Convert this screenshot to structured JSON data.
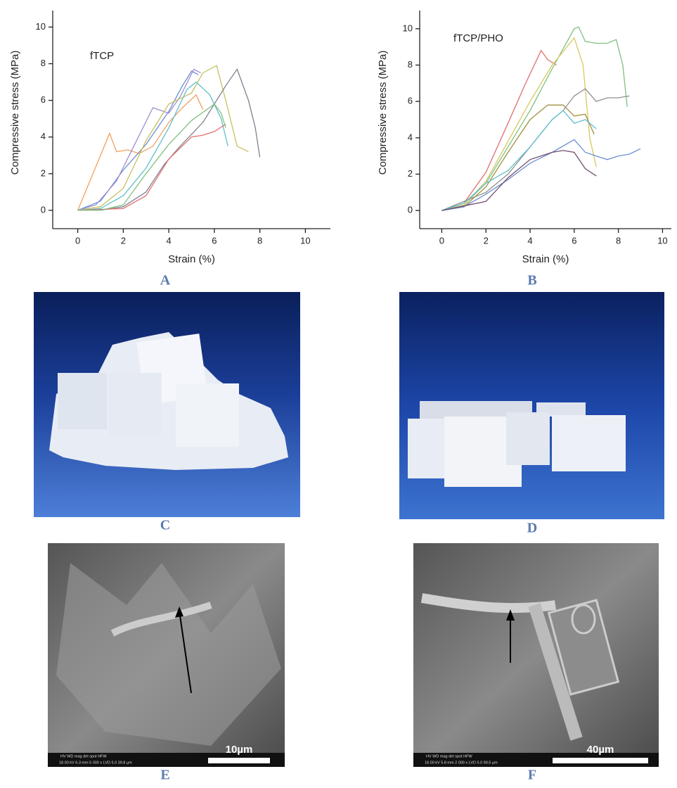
{
  "chart_data": [
    {
      "type": "line",
      "annotation": "fTCP",
      "xlabel": "Strain (%)",
      "ylabel": "Compressive stress (MPa)",
      "xlim": [
        -1.1,
        11.1
      ],
      "ylim": [
        -1,
        10.9
      ],
      "xticks": [
        0,
        2,
        4,
        6,
        8,
        10
      ],
      "yticks": [
        0,
        2,
        4,
        6,
        8,
        10
      ],
      "series": [
        {
          "color": "#f0a060",
          "x": [
            0,
            0.5,
            1,
            1.4,
            1.7,
            2.2,
            2.7,
            3.3,
            4,
            4.6,
            5.2,
            5.5
          ],
          "values": [
            0,
            1.5,
            3,
            4.2,
            3.2,
            3.3,
            3.1,
            3.5,
            4.8,
            5.6,
            6.3,
            5.5
          ]
        },
        {
          "color": "#6a8fd0",
          "x": [
            0,
            1,
            2,
            3,
            4,
            4.6,
            5,
            5.3
          ],
          "values": [
            0,
            0.5,
            2.2,
            3.6,
            5.4,
            6.8,
            7.6,
            7.4
          ]
        },
        {
          "color": "#a090d0",
          "x": [
            0,
            0.8,
            1.7,
            2.5,
            3.3,
            4,
            4.5,
            5.1,
            5.4
          ],
          "values": [
            0,
            0.3,
            1.6,
            3.6,
            5.6,
            5.3,
            6.2,
            7.7,
            7.5
          ]
        },
        {
          "color": "#c8c060",
          "x": [
            0,
            1,
            2,
            3,
            4,
            5,
            5.5,
            6.1,
            6.5,
            7,
            7.5
          ],
          "values": [
            0,
            0.2,
            1.2,
            3.8,
            5.8,
            6.4,
            7.5,
            7.9,
            6,
            3.5,
            3.2
          ]
        },
        {
          "color": "#60c0c8",
          "x": [
            0,
            1,
            2,
            3,
            4,
            4.8,
            5.2,
            5.8,
            6.3,
            6.6
          ],
          "values": [
            0,
            0.1,
            0.8,
            2.3,
            4.5,
            6.6,
            7,
            6.3,
            5,
            3.5
          ]
        },
        {
          "color": "#808090",
          "x": [
            0,
            1,
            2,
            3,
            3.8,
            4.5,
            5.5,
            6.5,
            7,
            7.5,
            7.8,
            8
          ],
          "values": [
            0,
            0,
            0.2,
            1,
            2.5,
            3.5,
            4.8,
            6.8,
            7.7,
            6,
            4.5,
            2.9
          ]
        },
        {
          "color": "#e07070",
          "x": [
            0,
            2,
            3,
            4,
            5,
            5.5,
            6,
            6.5
          ],
          "values": [
            0,
            0.1,
            0.8,
            2.8,
            4,
            4.1,
            4.3,
            4.7
          ]
        },
        {
          "color": "#80c080",
          "x": [
            0,
            1,
            2,
            3,
            4,
            5,
            6,
            6.3,
            6.5
          ],
          "values": [
            0,
            0,
            0.3,
            2,
            3.6,
            4.9,
            5.8,
            5.3,
            4.5
          ]
        }
      ]
    },
    {
      "type": "line",
      "annotation": "fTCP/PHO",
      "xlabel": "Strain (%)",
      "ylabel": "Compressive stress (MPa)",
      "xlim": [
        -1,
        10.4
      ],
      "ylim": [
        -1,
        11
      ],
      "xticks": [
        0,
        2,
        4,
        6,
        8,
        10
      ],
      "yticks": [
        0,
        2,
        4,
        6,
        8,
        10
      ],
      "series": [
        {
          "color": "#e07070",
          "x": [
            0,
            1,
            2,
            3,
            3.8,
            4.5,
            4.8,
            5.2
          ],
          "values": [
            0,
            0.4,
            2.1,
            4.8,
            7,
            8.8,
            8.3,
            8
          ]
        },
        {
          "color": "#80c080",
          "x": [
            0,
            1,
            2,
            3,
            4,
            5,
            6,
            6.2,
            6.5,
            7,
            7.5,
            7.9,
            8.2,
            8.4
          ],
          "values": [
            0,
            0.3,
            1.5,
            3.5,
            5.5,
            7.8,
            10,
            10.1,
            9.3,
            9.2,
            9.2,
            9.4,
            8,
            5.7
          ]
        },
        {
          "color": "#d8c860",
          "x": [
            0,
            1,
            2,
            3,
            4,
            5,
            6,
            6.4,
            6.7,
            7
          ],
          "values": [
            0,
            0.3,
            1.6,
            3.8,
            6,
            8,
            9.5,
            8,
            4,
            2.4
          ]
        },
        {
          "color": "#909090",
          "x": [
            0,
            2,
            3,
            4,
            5,
            5.5,
            6,
            6.5,
            7,
            7.5,
            8,
            8.5
          ],
          "values": [
            0,
            1,
            2,
            3.5,
            5,
            5.5,
            6.3,
            6.7,
            6,
            6.2,
            6.2,
            6.3
          ]
        },
        {
          "color": "#a09040",
          "x": [
            0,
            1,
            2,
            3,
            4,
            4.8,
            5.5,
            6,
            6.5,
            6.9
          ],
          "values": [
            0,
            0.2,
            1.3,
            3.2,
            5,
            5.8,
            5.8,
            5.2,
            5.3,
            4.2
          ]
        },
        {
          "color": "#60c0d0",
          "x": [
            0,
            1,
            2,
            3,
            4,
            5,
            5.5,
            6,
            6.5,
            7
          ],
          "values": [
            0,
            0.4,
            1.5,
            2.2,
            3.5,
            5,
            5.5,
            4.8,
            5,
            4.5
          ]
        },
        {
          "color": "#6a8fd0",
          "x": [
            0,
            1,
            2,
            3,
            4,
            5,
            6,
            6.5,
            7,
            7.5,
            8,
            8.5,
            9
          ],
          "values": [
            0,
            0.2,
            0.9,
            1.7,
            2.6,
            3.2,
            3.9,
            3.2,
            3,
            2.8,
            3,
            3.1,
            3.4
          ]
        },
        {
          "color": "#705070",
          "x": [
            0,
            2,
            3,
            4,
            5,
            5.5,
            6,
            6.5,
            7
          ],
          "values": [
            0,
            0.5,
            1.8,
            2.8,
            3.2,
            3.3,
            3.2,
            2.3,
            1.9
          ]
        }
      ]
    }
  ],
  "panels": [
    "A",
    "B",
    "C",
    "D",
    "E",
    "F"
  ],
  "sem": [
    {
      "scale": "10µm",
      "header": "HV    WD    mag    det  spot   HFW",
      "info": "18.00 kV  6.3 mm  5 000 x  LVD  5.0  39.8 µm"
    },
    {
      "scale": "40µm",
      "header": "HV    WD    mag    det  spot   HFW",
      "info": "18.00 kV  5.8 mm  2 000 x  LVD  5.0  99.5 µm"
    }
  ]
}
